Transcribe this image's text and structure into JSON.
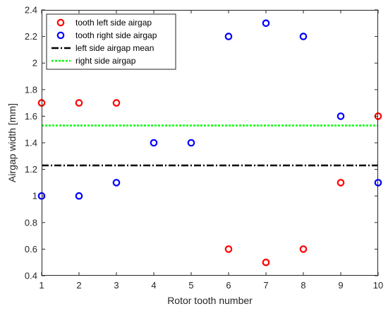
{
  "chart_data": {
    "type": "scatter",
    "xlabel": "Rotor tooth number",
    "ylabel": "Airgap width [mm]",
    "xlim": [
      1,
      10
    ],
    "ylim": [
      0.4,
      2.4
    ],
    "xticks": [
      1,
      2,
      3,
      4,
      5,
      6,
      7,
      8,
      9,
      10
    ],
    "yticks": [
      0.4,
      0.6,
      0.8,
      1.0,
      1.2,
      1.4,
      1.6,
      1.8,
      2.0,
      2.2,
      2.4
    ],
    "ytick_labels": [
      "0.4",
      "0.6",
      "0.8",
      "1",
      "1.2",
      "1.4",
      "1.6",
      "1.8",
      "2",
      "2.2",
      "2.4"
    ],
    "grid": false,
    "legend_position": "top-left",
    "series": [
      {
        "name": "tooth left side airgap",
        "kind": "marker",
        "marker": "circle",
        "color": "#ff0000",
        "x": [
          1,
          2,
          3,
          6,
          7,
          8,
          9,
          10
        ],
        "y": [
          1.7,
          1.7,
          1.7,
          0.6,
          0.5,
          0.6,
          1.1,
          1.6
        ]
      },
      {
        "name": "tooth right side airgap",
        "kind": "marker",
        "marker": "circle",
        "color": "#0000ff",
        "x": [
          1,
          2,
          3,
          4,
          5,
          6,
          7,
          8,
          9,
          10
        ],
        "y": [
          1.0,
          1.0,
          1.1,
          1.4,
          1.4,
          2.2,
          2.3,
          2.2,
          1.6,
          1.1
        ]
      },
      {
        "name": "left side airgap mean",
        "kind": "hline",
        "style": "dash-dot",
        "color": "#000000",
        "y": 1.23
      },
      {
        "name": "right side airgap",
        "kind": "hline",
        "style": "dotted",
        "color": "#00ff00",
        "y": 1.53
      }
    ]
  }
}
